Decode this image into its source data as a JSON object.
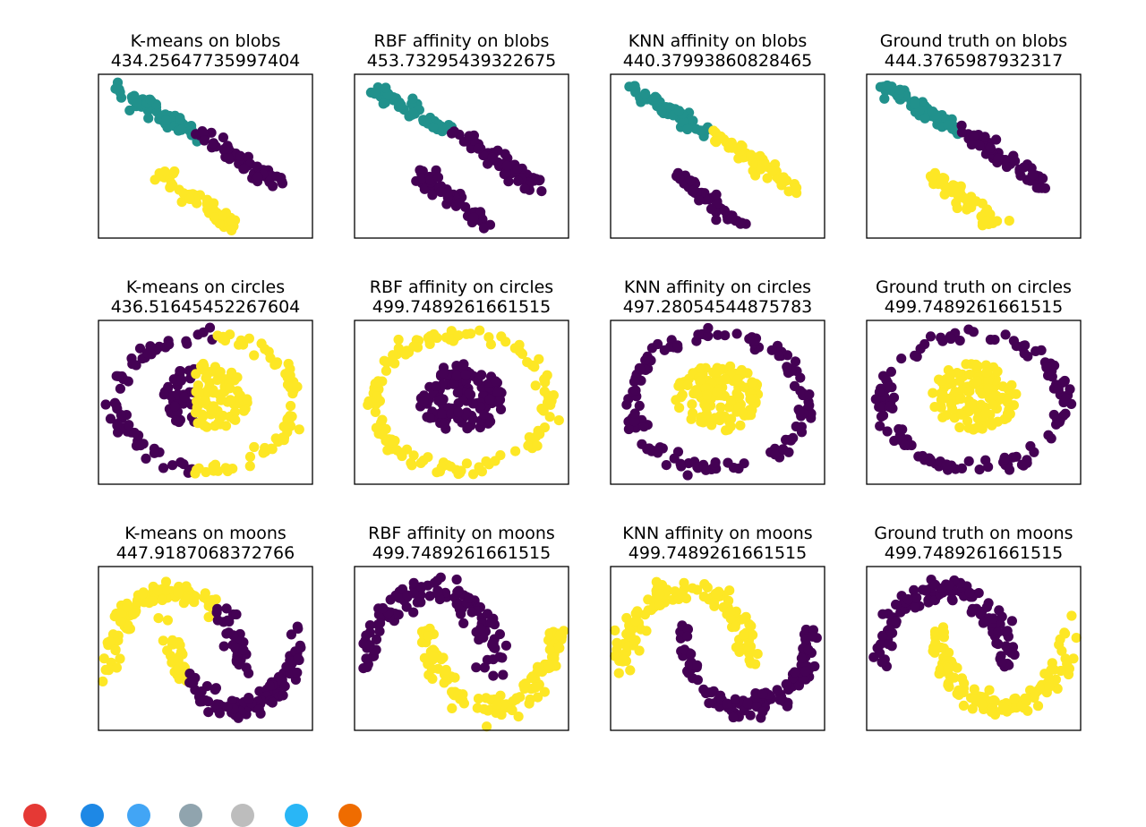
{
  "colors": {
    "yellow": "#fde725",
    "purple": "#440154",
    "teal": "#21918c"
  },
  "chart_data": [
    {
      "type": "scatter",
      "dataset": "blobs",
      "title": "K-means on blobs",
      "subtitle": "434.25647735997404",
      "series": [
        {
          "color": "teal",
          "shape": "blob_upper_left"
        },
        {
          "color": "purple",
          "shape": "blob_upper_right"
        },
        {
          "color": "yellow",
          "shape": "blob_lower"
        }
      ]
    },
    {
      "type": "scatter",
      "dataset": "blobs",
      "title": "RBF affinity on blobs",
      "subtitle": "453.73295439322675",
      "series": [
        {
          "color": "teal",
          "shape": "blob_upper_left"
        },
        {
          "color": "purple",
          "shape": "blob_upper_right"
        },
        {
          "color": "purple",
          "shape": "blob_lower"
        }
      ]
    },
    {
      "type": "scatter",
      "dataset": "blobs",
      "title": "KNN affinity on blobs",
      "subtitle": "440.37993860828465",
      "series": [
        {
          "color": "teal",
          "shape": "blob_upper_left"
        },
        {
          "color": "yellow",
          "shape": "blob_upper_right"
        },
        {
          "color": "purple",
          "shape": "blob_lower"
        }
      ]
    },
    {
      "type": "scatter",
      "dataset": "blobs",
      "title": "Ground truth on blobs",
      "subtitle": "444.3765987932317",
      "series": [
        {
          "color": "teal",
          "shape": "blob_upper_left"
        },
        {
          "color": "purple",
          "shape": "blob_upper_right"
        },
        {
          "color": "yellow",
          "shape": "blob_lower"
        }
      ]
    },
    {
      "type": "scatter",
      "dataset": "circles",
      "title": "K-means on circles",
      "subtitle": "436.51645452267604",
      "series": [
        {
          "color": "purple",
          "shape": "left_half"
        },
        {
          "color": "yellow",
          "shape": "right_half"
        }
      ]
    },
    {
      "type": "scatter",
      "dataset": "circles",
      "title": "RBF affinity on circles",
      "subtitle": "499.7489261661515",
      "series": [
        {
          "color": "yellow",
          "shape": "outer_ring"
        },
        {
          "color": "purple",
          "shape": "inner_disk"
        }
      ]
    },
    {
      "type": "scatter",
      "dataset": "circles",
      "title": "KNN affinity on circles",
      "subtitle": "497.28054544875783",
      "series": [
        {
          "color": "purple",
          "shape": "outer_ring"
        },
        {
          "color": "yellow",
          "shape": "inner_disk"
        }
      ]
    },
    {
      "type": "scatter",
      "dataset": "circles",
      "title": "Ground truth on circles",
      "subtitle": "499.7489261661515",
      "series": [
        {
          "color": "purple",
          "shape": "outer_ring"
        },
        {
          "color": "yellow",
          "shape": "inner_disk"
        }
      ]
    },
    {
      "type": "scatter",
      "dataset": "moons",
      "title": "K-means on moons",
      "subtitle": "447.9187068372766",
      "series": [
        {
          "color": "yellow",
          "shape": "left_side"
        },
        {
          "color": "purple",
          "shape": "right_side"
        }
      ]
    },
    {
      "type": "scatter",
      "dataset": "moons",
      "title": "RBF affinity on moons",
      "subtitle": "499.7489261661515",
      "series": [
        {
          "color": "purple",
          "shape": "upper_moon"
        },
        {
          "color": "yellow",
          "shape": "lower_moon"
        }
      ]
    },
    {
      "type": "scatter",
      "dataset": "moons",
      "title": "KNN affinity on moons",
      "subtitle": "499.7489261661515",
      "series": [
        {
          "color": "yellow",
          "shape": "upper_moon"
        },
        {
          "color": "purple",
          "shape": "lower_moon"
        }
      ]
    },
    {
      "type": "scatter",
      "dataset": "moons",
      "title": "Ground truth on moons",
      "subtitle": "499.7489261661515",
      "series": [
        {
          "color": "purple",
          "shape": "upper_moon"
        },
        {
          "color": "yellow",
          "shape": "lower_moon"
        }
      ]
    }
  ],
  "taskbar": {
    "icons": [
      {
        "name": "chrome-icon",
        "color": "#e53935"
      },
      {
        "name": "pen-icon",
        "color": "#1e88e5"
      },
      {
        "name": "document-icon",
        "color": "#42a5f5"
      },
      {
        "name": "globe-icon",
        "color": "#90a4ae"
      },
      {
        "name": "window-icon",
        "color": "#bdbdbd"
      },
      {
        "name": "chat-icon",
        "color": "#29b6f6"
      },
      {
        "name": "brush-icon",
        "color": "#ef6c00"
      }
    ]
  }
}
